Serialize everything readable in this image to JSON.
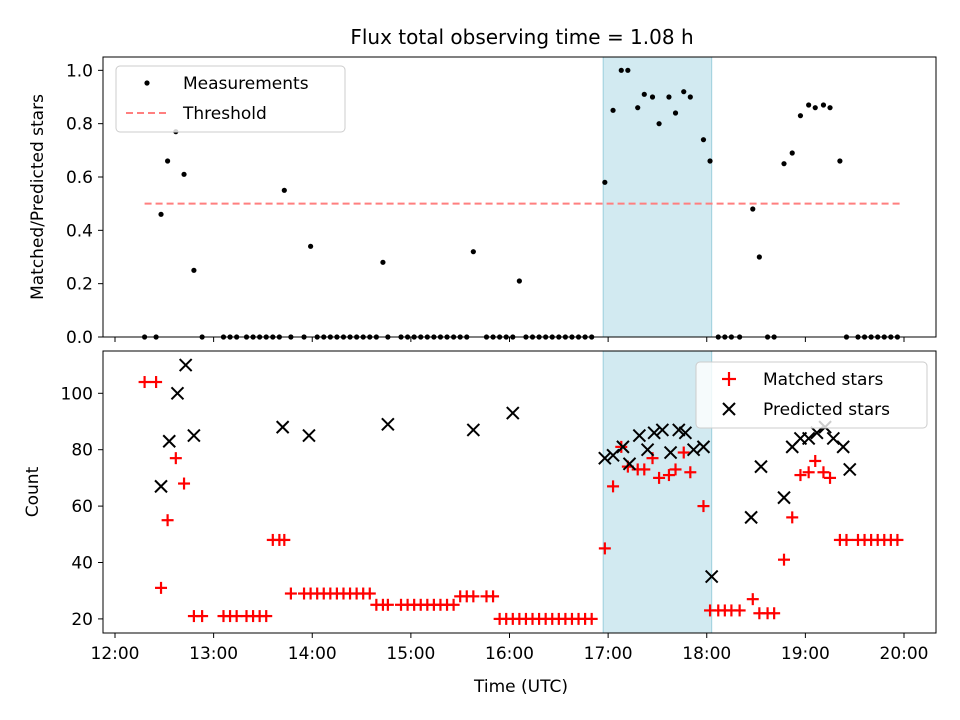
{
  "chart_data": {
    "title": "Flux total observing time = 1.08 h",
    "shaded_interval": [
      "16:57",
      "18:03"
    ],
    "shade_color": "#add8e6",
    "x_ticks": [
      "12:00",
      "13:00",
      "14:00",
      "15:00",
      "16:00",
      "17:00",
      "18:00",
      "19:00",
      "20:00"
    ],
    "xlabel": "Time (UTC)",
    "panels": [
      {
        "type": "scatter",
        "ylabel": "Matched/Predicted stars",
        "ylim": [
          0,
          1.05
        ],
        "y_ticks": [
          "0.0",
          "0.2",
          "0.4",
          "0.6",
          "0.8",
          "1.0"
        ],
        "legend_placement": "top-left",
        "series": [
          {
            "name": "Measurements",
            "marker": "dot",
            "color": "#000000",
            "x": [
              "12:18",
              "12:25",
              "12:28",
              "12:32",
              "12:37",
              "12:42",
              "12:48",
              "12:53",
              "13:06",
              "13:10",
              "13:14",
              "13:20",
              "13:24",
              "13:28",
              "13:32",
              "13:36",
              "13:40",
              "13:43",
              "13:47",
              "13:55",
              "13:59",
              "14:03",
              "14:07",
              "14:11",
              "14:15",
              "14:19",
              "14:23",
              "14:27",
              "14:31",
              "14:35",
              "14:39",
              "14:43",
              "14:46",
              "14:54",
              "14:58",
              "15:02",
              "15:06",
              "15:10",
              "15:14",
              "15:18",
              "15:22",
              "15:26",
              "15:30",
              "15:34",
              "15:38",
              "15:46",
              "15:50",
              "15:54",
              "15:58",
              "16:02",
              "16:06",
              "16:10",
              "16:14",
              "16:18",
              "16:22",
              "16:26",
              "16:30",
              "16:34",
              "16:38",
              "16:42",
              "16:46",
              "16:50",
              "16:58",
              "17:03",
              "17:08",
              "17:12",
              "17:18",
              "17:22",
              "17:27",
              "17:31",
              "17:37",
              "17:41",
              "17:46",
              "17:50",
              "17:58",
              "18:02",
              "18:07",
              "18:11",
              "18:15",
              "18:20",
              "18:28",
              "18:32",
              "18:37",
              "18:41",
              "18:47",
              "18:52",
              "18:57",
              "19:02",
              "19:06",
              "19:11",
              "19:15",
              "19:21",
              "19:25",
              "19:32",
              "19:36",
              "19:40",
              "19:44",
              "19:48",
              "19:52",
              "19:56"
            ],
            "y": [
              0,
              0,
              0.46,
              0.66,
              0.77,
              0.61,
              0.25,
              0,
              0,
              0,
              0,
              0,
              0,
              0,
              0,
              0,
              0,
              0.55,
              0,
              0,
              0.34,
              0,
              0,
              0,
              0,
              0,
              0,
              0,
              0,
              0,
              0,
              0.28,
              0,
              0,
              0,
              0,
              0,
              0,
              0,
              0,
              0,
              0,
              0,
              0,
              0.32,
              0,
              0,
              0,
              0,
              0,
              0.21,
              0,
              0,
              0,
              0,
              0,
              0,
              0,
              0,
              0,
              0,
              0,
              0.58,
              0.85,
              1.0,
              1.0,
              0.86,
              0.91,
              0.9,
              0.8,
              0.9,
              0.84,
              0.92,
              0.9,
              0.74,
              0.66,
              0,
              0,
              0,
              0,
              0.48,
              0.3,
              0,
              0,
              0.65,
              0.69,
              0.83,
              0.87,
              0.86,
              0.87,
              0.86,
              0.66,
              0,
              0,
              0,
              0,
              0,
              0,
              0,
              0
            ]
          },
          {
            "name": "Threshold",
            "line": "dashed",
            "color": "#ff7f7f",
            "x": [
              "12:18",
              "19:58"
            ],
            "y": [
              0.5,
              0.5
            ]
          }
        ]
      },
      {
        "type": "scatter",
        "ylabel": "Count",
        "ylim": [
          15,
          115
        ],
        "y_ticks": [
          "20",
          "40",
          "60",
          "80",
          "100"
        ],
        "legend_placement": "top-right",
        "series": [
          {
            "name": "Matched stars",
            "marker": "plus",
            "color": "#ff0000",
            "x": [
              "12:18",
              "12:25",
              "12:28",
              "12:32",
              "12:37",
              "12:42",
              "12:48",
              "12:53",
              "13:06",
              "13:10",
              "13:14",
              "13:20",
              "13:24",
              "13:28",
              "13:32",
              "13:36",
              "13:40",
              "13:43",
              "13:47",
              "13:55",
              "13:59",
              "14:03",
              "14:07",
              "14:11",
              "14:15",
              "14:19",
              "14:23",
              "14:27",
              "14:31",
              "14:35",
              "14:39",
              "14:43",
              "14:46",
              "14:54",
              "14:58",
              "15:02",
              "15:06",
              "15:10",
              "15:14",
              "15:18",
              "15:22",
              "15:26",
              "15:30",
              "15:34",
              "15:38",
              "15:46",
              "15:50",
              "15:54",
              "15:58",
              "16:02",
              "16:06",
              "16:10",
              "16:14",
              "16:18",
              "16:22",
              "16:26",
              "16:30",
              "16:34",
              "16:38",
              "16:42",
              "16:46",
              "16:50",
              "16:58",
              "17:03",
              "17:08",
              "17:12",
              "17:18",
              "17:22",
              "17:27",
              "17:31",
              "17:37",
              "17:41",
              "17:46",
              "17:50",
              "17:58",
              "18:02",
              "18:07",
              "18:11",
              "18:15",
              "18:20",
              "18:28",
              "18:32",
              "18:37",
              "18:41",
              "18:47",
              "18:52",
              "18:57",
              "19:02",
              "19:06",
              "19:11",
              "19:15",
              "19:21",
              "19:25",
              "19:32",
              "19:36",
              "19:40",
              "19:44",
              "19:48",
              "19:52",
              "19:56"
            ],
            "y": [
              104,
              104,
              31,
              55,
              77,
              68,
              21,
              21,
              21,
              21,
              21,
              21,
              21,
              21,
              21,
              48,
              48,
              48,
              29,
              29,
              29,
              29,
              29,
              29,
              29,
              29,
              29,
              29,
              29,
              29,
              25,
              25,
              25,
              25,
              25,
              25,
              25,
              25,
              25,
              25,
              25,
              25,
              28,
              28,
              28,
              28,
              28,
              20,
              20,
              20,
              20,
              20,
              20,
              20,
              20,
              20,
              20,
              20,
              20,
              20,
              20,
              20,
              45,
              67,
              81,
              74,
              73,
              73,
              77,
              70,
              71,
              73,
              79,
              72,
              60,
              23,
              23,
              23,
              23,
              23,
              27,
              22,
              22,
              22,
              41,
              56,
              71,
              72,
              76,
              72,
              70,
              48,
              48,
              48,
              48,
              48,
              48,
              48,
              48,
              48
            ]
          },
          {
            "name": "Predicted stars",
            "marker": "x",
            "color": "#000000",
            "x": [
              "12:28",
              "12:33",
              "12:38",
              "12:43",
              "12:48",
              "13:42",
              "13:58",
              "14:46",
              "15:38",
              "16:02",
              "16:58",
              "17:03",
              "17:09",
              "17:13",
              "17:19",
              "17:24",
              "17:28",
              "17:33",
              "17:38",
              "17:43",
              "17:47",
              "17:52",
              "17:58",
              "18:03",
              "18:27",
              "18:33",
              "18:47",
              "18:52",
              "18:57",
              "19:02",
              "19:07",
              "19:12",
              "19:17",
              "19:23",
              "19:27"
            ],
            "y": [
              67,
              83,
              100,
              110,
              85,
              88,
              85,
              89,
              87,
              93,
              77,
              78,
              81,
              75,
              85,
              80,
              86,
              87,
              79,
              87,
              86,
              80,
              81,
              35,
              56,
              74,
              63,
              81,
              84,
              84,
              86,
              88,
              84,
              81,
              73
            ]
          }
        ]
      }
    ]
  }
}
